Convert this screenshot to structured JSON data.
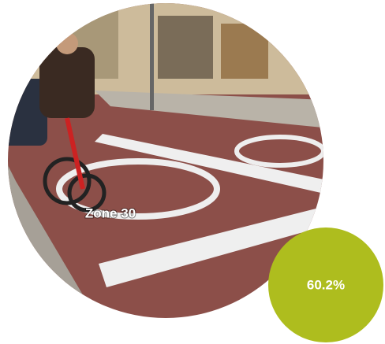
{
  "photo": {
    "caption": "Zone 30"
  },
  "badge": {
    "text": "60.2%"
  }
}
